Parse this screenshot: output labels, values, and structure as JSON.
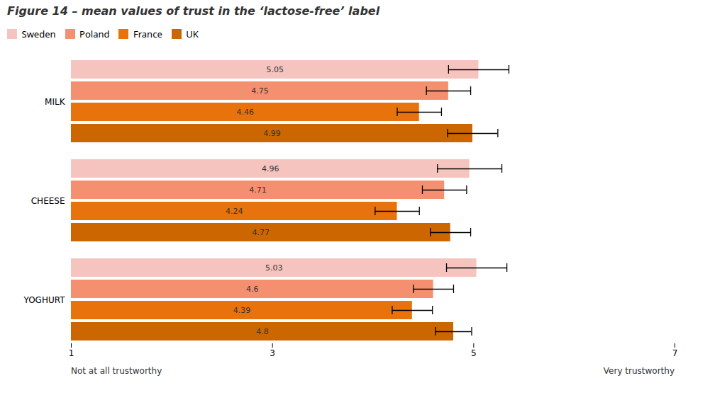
{
  "chart_data": {
    "type": "bar",
    "orientation": "horizontal",
    "title": "Figure 14 – mean values of trust in the ‘lactose-free’ label",
    "categories": [
      "MILK",
      "CHEESE",
      "YOGHURT"
    ],
    "series": [
      {
        "name": "Sweden",
        "color": "#F5C4BE",
        "values": [
          5.05,
          4.96,
          5.03
        ],
        "errors": [
          0.3,
          0.32,
          0.3
        ]
      },
      {
        "name": "Poland",
        "color": "#F49070",
        "values": [
          4.75,
          4.71,
          4.6
        ],
        "errors": [
          0.22,
          0.22,
          0.2
        ]
      },
      {
        "name": "France",
        "color": "#E8720C",
        "values": [
          4.46,
          4.24,
          4.39
        ],
        "errors": [
          0.22,
          0.22,
          0.2
        ]
      },
      {
        "name": "UK",
        "color": "#CC6600",
        "values": [
          4.99,
          4.77,
          4.8
        ],
        "errors": [
          0.25,
          0.2,
          0.18
        ]
      }
    ],
    "xlim": [
      1,
      7
    ],
    "xticks": [
      1,
      3,
      5,
      7
    ],
    "annotations": [
      {
        "text": "Not at all trustworthy",
        "x": 1
      },
      {
        "text": "Very trustworthy",
        "x": 7
      }
    ],
    "data_labels": true,
    "grid": false
  }
}
